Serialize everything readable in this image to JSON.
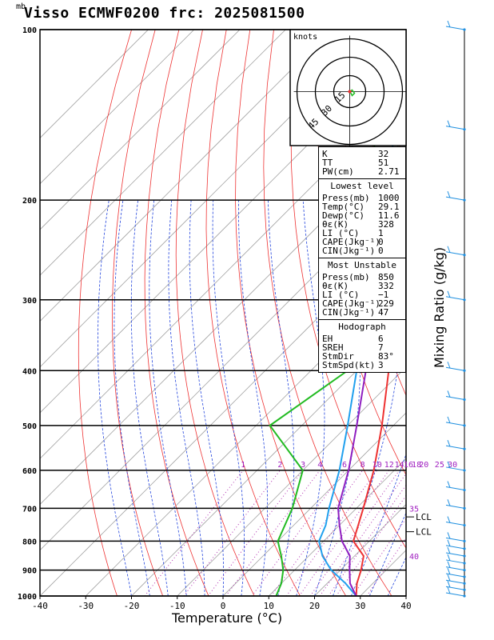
{
  "title": "Visso ECMWF0200  frc: 2025081500",
  "chart_data": {
    "type": "skew-t",
    "pressure_unit": "mb",
    "xlabel": "Temperature (°C)",
    "y2label": "Mixing Ratio (g/kg)",
    "xlim": [
      -40,
      40
    ],
    "ylim_pressure": [
      1000,
      100
    ],
    "x_ticks": [
      -40,
      -30,
      -20,
      -10,
      0,
      10,
      20,
      30,
      40
    ],
    "pressure_ticks": [
      100,
      200,
      300,
      400,
      500,
      600,
      700,
      800,
      900,
      1000
    ],
    "mixing_ratio_labels": [
      "1",
      "2",
      "3",
      "4",
      "6",
      "8",
      "10",
      "12",
      "14",
      "16",
      "18",
      "20",
      "25",
      "30"
    ],
    "markers": [
      "35",
      "40"
    ],
    "lcl_labels": [
      "LCL",
      "LCL"
    ],
    "series": [
      {
        "name": "",
        "color": "#ee3333",
        "points": [
          [
            1000,
            29.1
          ],
          [
            950,
            26.5
          ],
          [
            900,
            24.5
          ],
          [
            850,
            22.0
          ],
          [
            800,
            16.5
          ],
          [
            700,
            11.5
          ],
          [
            600,
            5.5
          ],
          [
            500,
            -2.5
          ],
          [
            400,
            -13
          ],
          [
            300,
            -27
          ],
          [
            250,
            -35
          ],
          [
            200,
            -43
          ],
          [
            150,
            -53
          ],
          [
            100,
            -63
          ]
        ]
      },
      {
        "name": "",
        "color": "#22bb22",
        "points": [
          [
            1000,
            11.6
          ],
          [
            950,
            10
          ],
          [
            900,
            7.5
          ],
          [
            850,
            4
          ],
          [
            800,
            0
          ],
          [
            700,
            -4
          ],
          [
            600,
            -10
          ],
          [
            500,
            -27
          ],
          [
            400,
            -22
          ],
          [
            300,
            -38
          ],
          [
            250,
            -52
          ],
          [
            200,
            -56
          ],
          [
            150,
            -68
          ],
          [
            100,
            -78
          ]
        ]
      },
      {
        "name": "",
        "color": "#20a0ee",
        "points": [
          [
            1000,
            29.1
          ],
          [
            950,
            24
          ],
          [
            900,
            18
          ],
          [
            850,
            13
          ],
          [
            800,
            9
          ],
          [
            750,
            7
          ],
          [
            700,
            4
          ],
          [
            600,
            -2
          ],
          [
            500,
            -10
          ],
          [
            400,
            -20
          ],
          [
            300,
            -34
          ],
          [
            200,
            -52
          ],
          [
            150,
            -64
          ],
          [
            120,
            -72
          ]
        ]
      },
      {
        "name": "",
        "color": "#9020c0",
        "points": [
          [
            1000,
            29.1
          ],
          [
            950,
            25
          ],
          [
            900,
            22
          ],
          [
            850,
            19
          ],
          [
            800,
            14
          ],
          [
            750,
            10
          ],
          [
            700,
            6
          ],
          [
            600,
            0
          ],
          [
            500,
            -8
          ],
          [
            400,
            -18
          ],
          [
            300,
            -31
          ],
          [
            200,
            -49
          ],
          [
            150,
            -60
          ],
          [
            120,
            -67
          ]
        ]
      }
    ],
    "stats": {
      "top": [
        [
          "K",
          "32"
        ],
        [
          "TT",
          "51"
        ],
        [
          "PW(cm)",
          "2.71"
        ]
      ],
      "lowest_level_title": "Lowest level",
      "lowest_level": [
        [
          "Press(mb)",
          "1000"
        ],
        [
          "Temp(°C)",
          "29.1"
        ],
        [
          "Dewp(°C)",
          "11.6"
        ],
        [
          "θε(K)",
          "328"
        ],
        [
          "LI (°C)",
          "1"
        ],
        [
          "CAPE(Jkg⁻¹)",
          "0"
        ],
        [
          "CIN(Jkg⁻¹)",
          "0"
        ]
      ],
      "most_unstable_title": "Most Unstable",
      "most_unstable": [
        [
          "Press(mb)",
          "850"
        ],
        [
          "θε(K)",
          "332"
        ],
        [
          "LI (°C)",
          "−1"
        ],
        [
          "CAPE(Jkg⁻¹)",
          "229"
        ],
        [
          "CIN(Jkg⁻¹)",
          "47"
        ]
      ],
      "hodograph_title": "Hodograph",
      "hodograph": [
        [
          "EH",
          "6"
        ],
        [
          "SREH",
          "7"
        ],
        [
          "StmDir",
          "83°"
        ],
        [
          "StmSpd(kt)",
          "3"
        ]
      ]
    },
    "hodograph_units": "knots",
    "hodograph_rings": [
      "15",
      "30",
      "45"
    ]
  }
}
